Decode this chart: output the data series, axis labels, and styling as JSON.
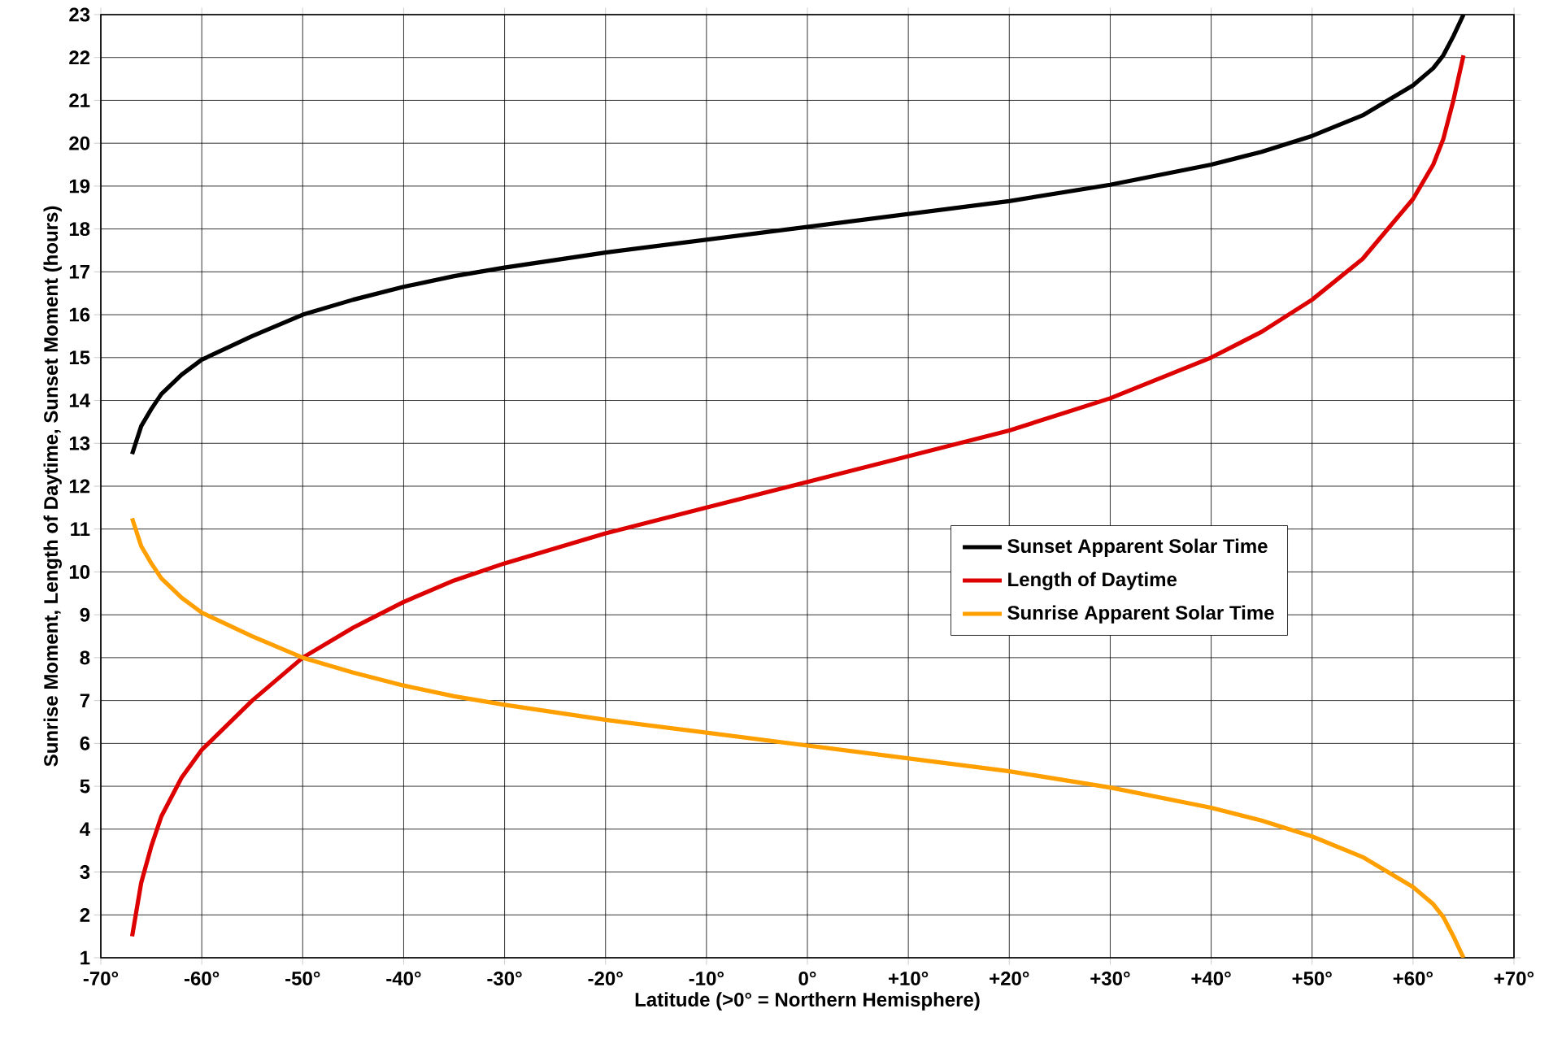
{
  "chart_data": {
    "type": "line",
    "xlabel": "Latitude (>0° = Northern Hemisphere)",
    "ylabel": "Sunrise Moment, Length of Daytime, Sunset Moment (hours)",
    "x": [
      -66.9,
      -66,
      -65,
      -64,
      -62,
      -60,
      -55,
      -50,
      -45,
      -40,
      -35,
      -30,
      -20,
      -10,
      0,
      10,
      20,
      30,
      40,
      45,
      50,
      55,
      60,
      62,
      63,
      64,
      65
    ],
    "series": [
      {
        "name": "Sunset Apparent Solar Time",
        "color": "#000000",
        "values": [
          12.75,
          13.4,
          13.8,
          14.15,
          14.6,
          14.95,
          15.5,
          16.0,
          16.35,
          16.65,
          16.9,
          17.1,
          17.45,
          17.75,
          18.05,
          18.35,
          18.65,
          19.03,
          19.5,
          19.8,
          20.17,
          20.65,
          21.35,
          21.75,
          22.05,
          22.5,
          23
        ]
      },
      {
        "name": "Length of Daytime",
        "color": "#dd0000",
        "values": [
          1.5,
          2.75,
          3.6,
          4.3,
          5.2,
          5.85,
          7.0,
          8.0,
          8.7,
          9.3,
          9.8,
          10.2,
          10.9,
          11.5,
          12.1,
          12.7,
          13.3,
          14.05,
          15.0,
          15.6,
          16.35,
          17.3,
          18.7,
          19.5,
          20.1,
          21.0,
          22.05
        ]
      },
      {
        "name": "Sunrise Apparent Solar Time",
        "color": "#ffa000",
        "values": [
          11.25,
          10.6,
          10.2,
          9.85,
          9.4,
          9.05,
          8.5,
          8.0,
          7.65,
          7.35,
          7.1,
          6.9,
          6.55,
          6.25,
          5.95,
          5.65,
          5.35,
          4.97,
          4.5,
          4.2,
          3.83,
          3.35,
          2.65,
          2.25,
          1.95,
          1.5,
          1.0
        ]
      }
    ],
    "xlim": [
      -70,
      70
    ],
    "ylim": [
      1,
      23
    ],
    "xticks": [
      {
        "value": -70,
        "label": "-70°"
      },
      {
        "value": -60,
        "label": "-60°"
      },
      {
        "value": -50,
        "label": "-50°"
      },
      {
        "value": -40,
        "label": "-40°"
      },
      {
        "value": -30,
        "label": "-30°"
      },
      {
        "value": -20,
        "label": "-20°"
      },
      {
        "value": -10,
        "label": "-10°"
      },
      {
        "value": 0,
        "label": "0°"
      },
      {
        "value": 10,
        "label": "+10°"
      },
      {
        "value": 20,
        "label": "+20°"
      },
      {
        "value": 30,
        "label": "+30°"
      },
      {
        "value": 40,
        "label": "+40°"
      },
      {
        "value": 50,
        "label": "+50°"
      },
      {
        "value": 60,
        "label": "+60°"
      },
      {
        "value": 70,
        "label": "+70°"
      }
    ],
    "yticks": [
      1,
      2,
      3,
      4,
      5,
      6,
      7,
      8,
      9,
      10,
      11,
      12,
      13,
      14,
      15,
      16,
      17,
      18,
      19,
      20,
      21,
      22,
      23
    ],
    "grid": true,
    "legend": "right",
    "marker": "none",
    "line_style": "solid"
  }
}
